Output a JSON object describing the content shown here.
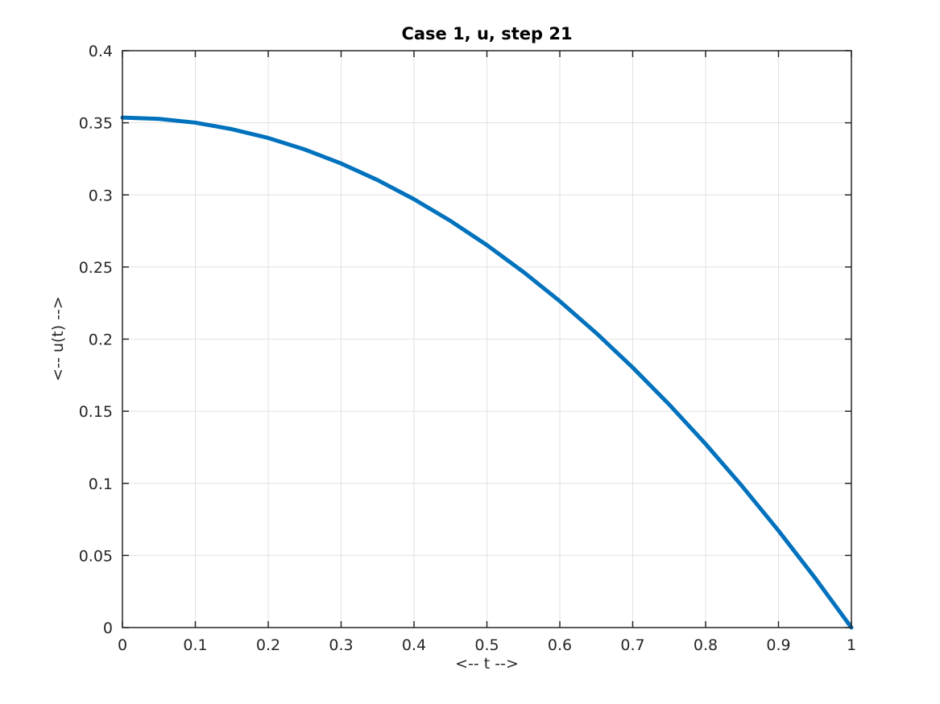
{
  "figure": {
    "background": "#ffffff"
  },
  "chart_data": {
    "type": "line",
    "title": "Case 1, u, step 21",
    "xlabel": "<-- t -->",
    "ylabel": "<-- u(t) -->",
    "xlim": [
      0,
      1
    ],
    "ylim": [
      0,
      0.4
    ],
    "x_ticks": [
      0,
      0.1,
      0.2,
      0.3,
      0.4,
      0.5,
      0.6,
      0.7,
      0.8,
      0.9,
      1
    ],
    "x_tick_labels": [
      "0",
      "0.1",
      "0.2",
      "0.3",
      "0.4",
      "0.5",
      "0.6",
      "0.7",
      "0.8",
      "0.9",
      "1"
    ],
    "y_ticks": [
      0,
      0.05,
      0.1,
      0.15,
      0.2,
      0.25,
      0.3,
      0.35,
      0.4
    ],
    "y_tick_labels": [
      "0",
      "0.05",
      "0.1",
      "0.15",
      "0.2",
      "0.25",
      "0.3",
      "0.35",
      "0.4"
    ],
    "grid": true,
    "box": true,
    "legend": "none",
    "series": [
      {
        "name": "u",
        "color": "#0072BD",
        "line_width": 5,
        "x": [
          0,
          0.05,
          0.1,
          0.15,
          0.2,
          0.25,
          0.3,
          0.35,
          0.4,
          0.45,
          0.5,
          0.55,
          0.6,
          0.65,
          0.7,
          0.75,
          0.8,
          0.85,
          0.9,
          0.95,
          1.0
        ],
        "y": [
          0.3536,
          0.3527,
          0.3501,
          0.3456,
          0.3395,
          0.3315,
          0.3218,
          0.3103,
          0.297,
          0.282,
          0.2652,
          0.2466,
          0.2263,
          0.2042,
          0.1803,
          0.1547,
          0.1273,
          0.0981,
          0.0672,
          0.0345,
          0.0
        ]
      }
    ]
  },
  "colors": {
    "axis": "#262626",
    "grid": "#e2e2e2",
    "line": "#0072BD",
    "text": "#262626",
    "title_text": "#000000",
    "background": "#ffffff"
  }
}
